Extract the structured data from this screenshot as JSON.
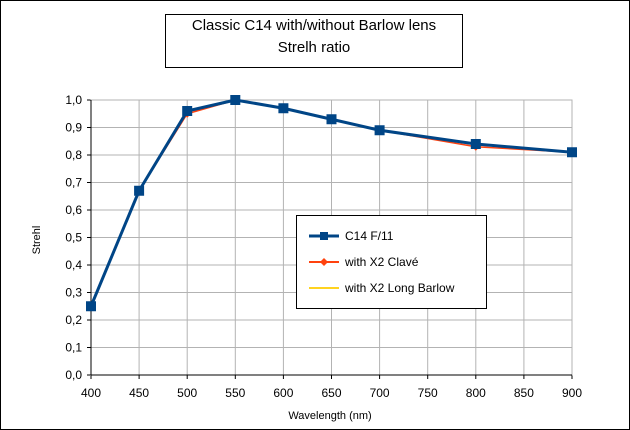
{
  "chart_data": {
    "type": "line",
    "title_lines": [
      "Classic  C14 with/without Barlow lens",
      "Strelh ratio"
    ],
    "xlabel": "Wavelength (nm)",
    "ylabel": "Strehl",
    "xlim": [
      400,
      900
    ],
    "ylim": [
      0,
      1
    ],
    "x_ticks": [
      "400",
      "450",
      "500",
      "550",
      "600",
      "650",
      "700",
      "750",
      "800",
      "850",
      "900"
    ],
    "y_ticks": [
      "0,0",
      "0,1",
      "0,2",
      "0,3",
      "0,4",
      "0,5",
      "0,6",
      "0,7",
      "0,8",
      "0,9",
      "1,0"
    ],
    "x_tick_values": [
      400,
      450,
      500,
      550,
      600,
      650,
      700,
      750,
      800,
      850,
      900
    ],
    "y_tick_values": [
      0,
      0.1,
      0.2,
      0.3,
      0.4,
      0.5,
      0.6,
      0.7,
      0.8,
      0.9,
      1.0
    ],
    "grid": true,
    "legend_position": "center-right",
    "series": [
      {
        "name": "C14 F/11",
        "color": "#004586",
        "marker": "square",
        "x": [
          400,
          450,
          500,
          550,
          600,
          650,
          700,
          800,
          900
        ],
        "y": [
          0.25,
          0.67,
          0.96,
          1.0,
          0.97,
          0.93,
          0.89,
          0.84,
          0.81
        ]
      },
      {
        "name": "with X2 Clavé",
        "color": "#ff420e",
        "marker": "diamond",
        "x": [
          400,
          450,
          500,
          550,
          600,
          650,
          700,
          800,
          900
        ],
        "y": [
          0.25,
          0.67,
          0.95,
          1.0,
          0.97,
          0.93,
          0.89,
          0.83,
          0.81
        ]
      },
      {
        "name": "with X2 Long Barlow",
        "color": "#ffd320",
        "marker": "triangle",
        "x": [
          400,
          450,
          500,
          550,
          600,
          650,
          700,
          800,
          900
        ],
        "y": [
          0.25,
          0.67,
          0.96,
          1.0,
          0.97,
          0.93,
          0.89,
          0.84,
          0.81
        ]
      }
    ],
    "draw_order": [
      2,
      1,
      0
    ]
  }
}
